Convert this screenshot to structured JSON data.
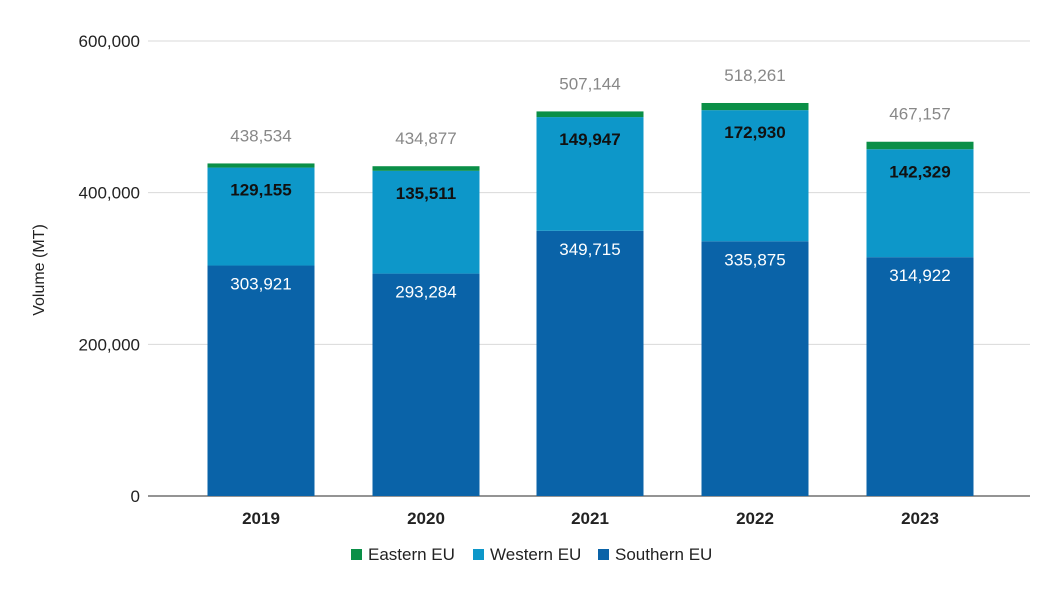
{
  "chart_data": {
    "type": "bar",
    "stacked": true,
    "title": "",
    "xlabel": "",
    "ylabel": "Volume (MT)",
    "ylim": [
      0,
      600000
    ],
    "yticks": [
      0,
      200000,
      400000,
      600000
    ],
    "ytick_labels": [
      "0",
      "200,000",
      "400,000",
      "600,000"
    ],
    "categories": [
      "2019",
      "2020",
      "2021",
      "2022",
      "2023"
    ],
    "series": [
      {
        "name": "Southern EU",
        "color": "#0a63a8",
        "values": [
          303921,
          293284,
          349715,
          335875,
          314922
        ],
        "labels": [
          "303,921",
          "293,284",
          "349,715",
          "335,875",
          "314,922"
        ]
      },
      {
        "name": "Western EU",
        "color": "#0d97c9",
        "values": [
          129155,
          135511,
          149947,
          172930,
          142329
        ],
        "labels": [
          "129,155",
          "135,511",
          "149,947",
          "172,930",
          "142,329"
        ]
      },
      {
        "name": "Eastern EU",
        "color": "#0a8f47",
        "values": [
          5458,
          6082,
          7482,
          9456,
          9906
        ]
      }
    ],
    "totals": [
      438534,
      434877,
      507144,
      518261,
      467157
    ],
    "total_labels": [
      "438,534",
      "434,877",
      "507,144",
      "518,261",
      "467,157"
    ],
    "legend": {
      "position": "bottom",
      "entries": [
        "Eastern EU",
        "Western EU",
        "Southern EU"
      ]
    }
  }
}
